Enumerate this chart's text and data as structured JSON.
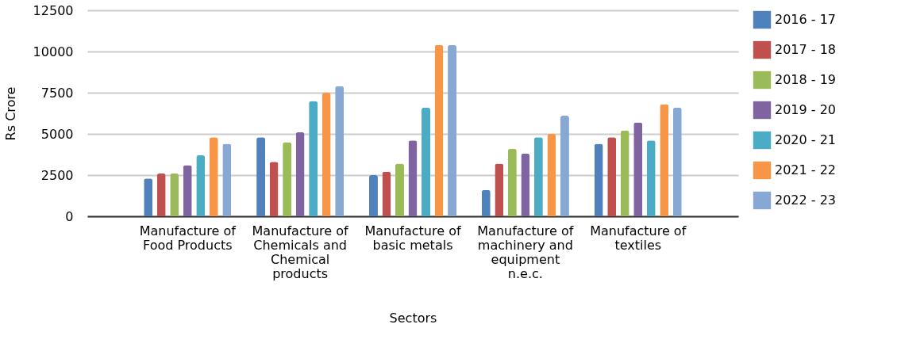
{
  "chart_data": {
    "type": "bar",
    "xlabel": "Sectors",
    "ylabel": "Rs Crore",
    "categories": [
      "Manufacture of Food Products",
      "Manufacture of Chemicals and Chemical products",
      "Manufacture of basic metals",
      "Manufacture of machinery and equipment n.e.c.",
      "Manufacture of textiles"
    ],
    "series": [
      {
        "name": "2016 - 17",
        "color": "#4f81bd",
        "values": [
          2300,
          4800,
          2500,
          1600,
          4400
        ]
      },
      {
        "name": "2017 - 18",
        "color": "#c0504d",
        "values": [
          2600,
          3300,
          2700,
          3200,
          4800
        ]
      },
      {
        "name": "2018 - 19",
        "color": "#9bbb59",
        "values": [
          2600,
          4500,
          3200,
          4100,
          5200
        ]
      },
      {
        "name": "2019 - 20",
        "color": "#8064a2",
        "values": [
          3100,
          5100,
          4600,
          3800,
          5700
        ]
      },
      {
        "name": "2020 - 21",
        "color": "#4bacc6",
        "values": [
          3700,
          7000,
          6600,
          4800,
          4600
        ]
      },
      {
        "name": "2021 - 22",
        "color": "#f79646",
        "values": [
          4800,
          7500,
          10400,
          5000,
          6800
        ]
      },
      {
        "name": "2022 - 23",
        "color": "#86a8d2",
        "values": [
          4400,
          7900,
          10400,
          6100,
          6600
        ]
      }
    ],
    "ylim": [
      0,
      12500
    ],
    "yticks": [
      0,
      2500,
      5000,
      7500,
      10000,
      12500
    ],
    "grid": "y",
    "legend": "right"
  }
}
